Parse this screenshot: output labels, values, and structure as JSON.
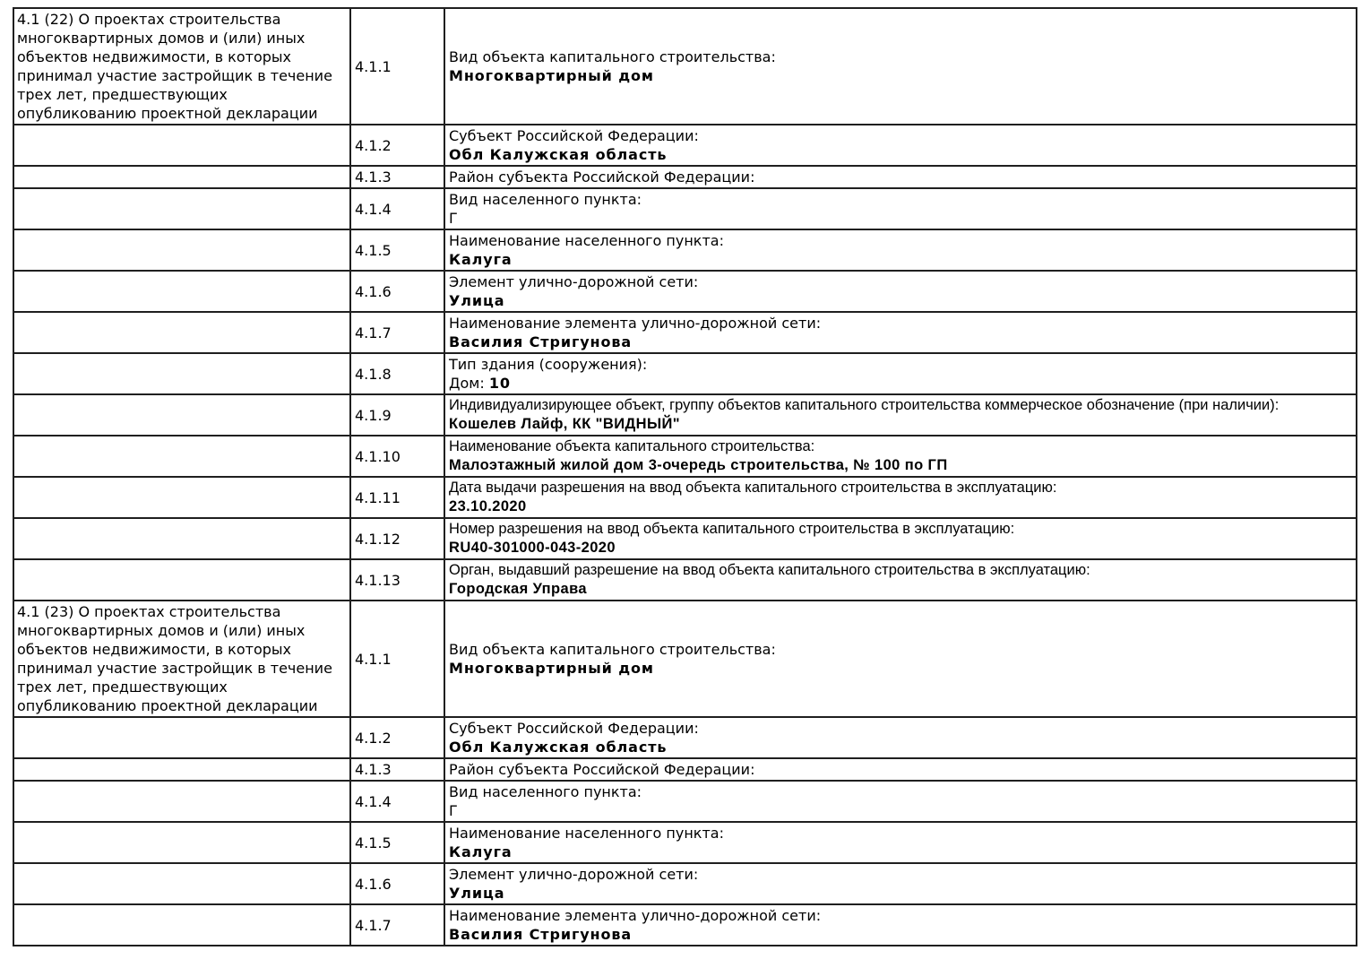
{
  "document": {
    "type": "project-declaration-table",
    "background_color": "#ffffff",
    "border_color": "#1f1f1f",
    "text_color": "#000000"
  },
  "sections": [
    {
      "header": "4.1 (22) О проектах строительства многоквартирных домов и (или) иных объектов недвижимости, в которых принимал участие застройщик в течение трех лет, предшествующих опубликованию проектной декларации",
      "rows": [
        {
          "num": "4.1.1",
          "label": "Вид объекта капитального строительства:",
          "value": "Многоквартирный дом"
        },
        {
          "num": "4.1.2",
          "label": "Субъект Российской Федерации:",
          "value": "Обл Калужская область"
        },
        {
          "num": "4.1.3",
          "label": "Район субъекта Российской Федерации:",
          "value": null
        },
        {
          "num": "4.1.4",
          "label": "Вид населенного пункта:",
          "value": "Г",
          "value_bold": false
        },
        {
          "num": "4.1.5",
          "label": "Наименование населенного пункта:",
          "value": "Калуга"
        },
        {
          "num": "4.1.6",
          "label": "Элемент улично-дорожной сети:",
          "value": "Улица"
        },
        {
          "num": "4.1.7",
          "label": "Наименование элемента улично-дорожной сети:",
          "value": "Василия Стригунова"
        },
        {
          "num": "4.1.8",
          "label": "Тип здания (сооружения):",
          "value_prefix": "Дом: ",
          "value": "10"
        },
        {
          "num": "4.1.9",
          "label": "Индивидуализирующее объект, группу объектов капитального строительства коммерческое обозначение (при наличии):",
          "value": "Кошелев Лайф, КК \"ВИДНЫЙ\"",
          "condensed": true
        },
        {
          "num": "4.1.10",
          "label": "Наименование объекта капитального строительства:",
          "value": "Малоэтажный жилой дом 3-очередь строительства, № 100 по ГП",
          "condensed": true
        },
        {
          "num": "4.1.11",
          "label": "Дата выдачи разрешения на ввод объекта капитального строительства в эксплуатацию:",
          "value": "23.10.2020",
          "condensed": true
        },
        {
          "num": "4.1.12",
          "label": "Номер разрешения на ввод объекта капитального строительства в эксплуатацию:",
          "value": "RU40-301000-043-2020",
          "condensed": true
        },
        {
          "num": "4.1.13",
          "label": "Орган, выдавший разрешение на ввод объекта капитального строительства в эксплуатацию:",
          "value": "Городская Управа",
          "condensed": true
        }
      ]
    },
    {
      "header": "4.1 (23) О проектах строительства многоквартирных домов и (или) иных объектов недвижимости, в которых принимал участие застройщик в течение трех лет, предшествующих опубликованию проектной декларации",
      "rows": [
        {
          "num": "4.1.1",
          "label": "Вид объекта капитального строительства:",
          "value": "Многоквартирный дом"
        },
        {
          "num": "4.1.2",
          "label": "Субъект Российской Федерации:",
          "value": "Обл Калужская область"
        },
        {
          "num": "4.1.3",
          "label": "Район субъекта Российской Федерации:",
          "value": null
        },
        {
          "num": "4.1.4",
          "label": "Вид населенного пункта:",
          "value": "Г",
          "value_bold": false
        },
        {
          "num": "4.1.5",
          "label": "Наименование населенного пункта:",
          "value": "Калуга"
        },
        {
          "num": "4.1.6",
          "label": "Элемент улично-дорожной сети:",
          "value": "Улица"
        },
        {
          "num": "4.1.7",
          "label": "Наименование элемента улично-дорожной сети:",
          "value": "Василия Стригунова"
        }
      ]
    }
  ]
}
